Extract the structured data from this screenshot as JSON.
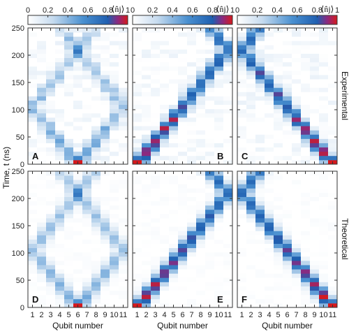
{
  "figure": {
    "row_labels": [
      "Experimental",
      "Theoretical"
    ],
    "ylabel": "Time, t (ns)",
    "xlabel": "Qubit number",
    "colorbar_ticks": [
      "0",
      "0.2",
      "0.4",
      "0.6",
      "0.8",
      "1"
    ],
    "colorbar_label": "⟨n̂j⟩",
    "colors": {
      "low": "#ffffff",
      "mid": "#1f6fc0",
      "high": "#d7191c"
    }
  },
  "chart_data": [
    {
      "type": "heatmap",
      "panel": "A",
      "x_categories": [
        "1",
        "2",
        "3",
        "4",
        "5",
        "6",
        "7",
        "8",
        "9",
        "10",
        "11"
      ],
      "y_ticks": [
        0,
        50,
        100,
        150,
        200,
        250
      ],
      "ylim": [
        0,
        250
      ],
      "excitation_start_qubit": 6,
      "row": "Experimental"
    },
    {
      "type": "heatmap",
      "panel": "B",
      "x_categories": [
        "1",
        "2",
        "3",
        "4",
        "5",
        "6",
        "7",
        "8",
        "9",
        "10",
        "11"
      ],
      "y_ticks": [
        0,
        50,
        100,
        150,
        200,
        250
      ],
      "ylim": [
        0,
        250
      ],
      "excitation_start_qubit": 1,
      "row": "Experimental"
    },
    {
      "type": "heatmap",
      "panel": "C",
      "x_categories": [
        "1",
        "2",
        "3",
        "4",
        "5",
        "6",
        "7",
        "8",
        "9",
        "10",
        "11"
      ],
      "y_ticks": [
        0,
        50,
        100,
        150,
        200,
        250
      ],
      "ylim": [
        0,
        250
      ],
      "excitation_start_qubit": 11,
      "row": "Experimental"
    },
    {
      "type": "heatmap",
      "panel": "D",
      "x_categories": [
        "1",
        "2",
        "3",
        "4",
        "5",
        "6",
        "7",
        "8",
        "9",
        "10",
        "11"
      ],
      "y_ticks": [
        0,
        50,
        100,
        150,
        200,
        250
      ],
      "ylim": [
        0,
        250
      ],
      "excitation_start_qubit": 6,
      "row": "Theoretical"
    },
    {
      "type": "heatmap",
      "panel": "E",
      "x_categories": [
        "1",
        "2",
        "3",
        "4",
        "5",
        "6",
        "7",
        "8",
        "9",
        "10",
        "11"
      ],
      "y_ticks": [
        0,
        50,
        100,
        150,
        200,
        250
      ],
      "ylim": [
        0,
        250
      ],
      "excitation_start_qubit": 1,
      "row": "Theoretical"
    },
    {
      "type": "heatmap",
      "panel": "F",
      "x_categories": [
        "1",
        "2",
        "3",
        "4",
        "5",
        "6",
        "7",
        "8",
        "9",
        "10",
        "11"
      ],
      "y_ticks": [
        0,
        50,
        100,
        150,
        200,
        250
      ],
      "ylim": [
        0,
        250
      ],
      "excitation_start_qubit": 11,
      "row": "Theoretical"
    }
  ]
}
